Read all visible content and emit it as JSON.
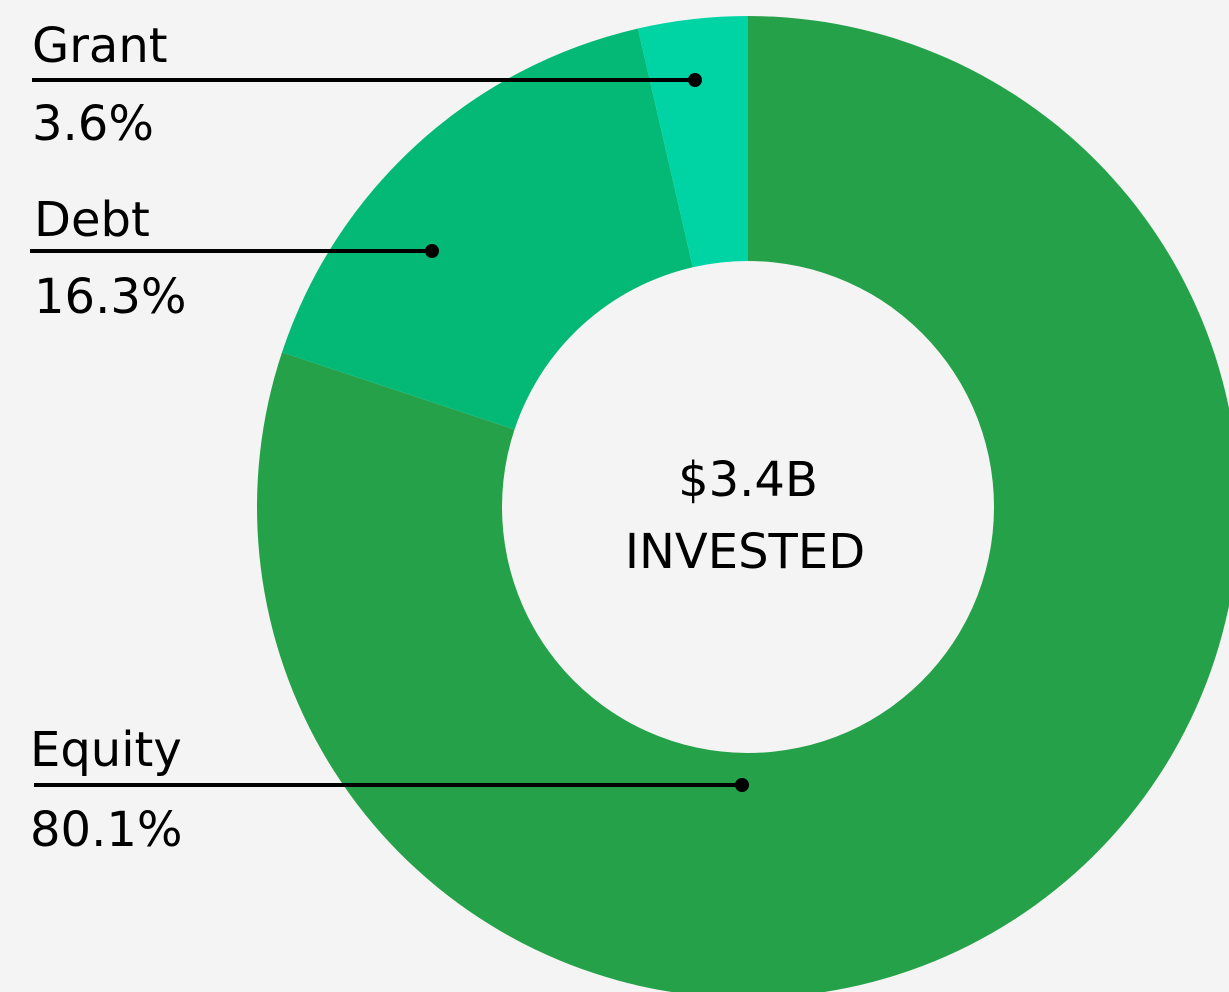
{
  "chart_data": {
    "type": "donut",
    "categories": [
      "Equity",
      "Debt",
      "Grant"
    ],
    "values": [
      80.1,
      16.3,
      3.6
    ],
    "value_labels": [
      "80.1%",
      "16.3%",
      "3.6%"
    ],
    "colors": [
      "#25a249",
      "#03b975",
      "#00d4a4"
    ],
    "center_text": [
      "$3.4B",
      "INVESTED"
    ]
  }
}
